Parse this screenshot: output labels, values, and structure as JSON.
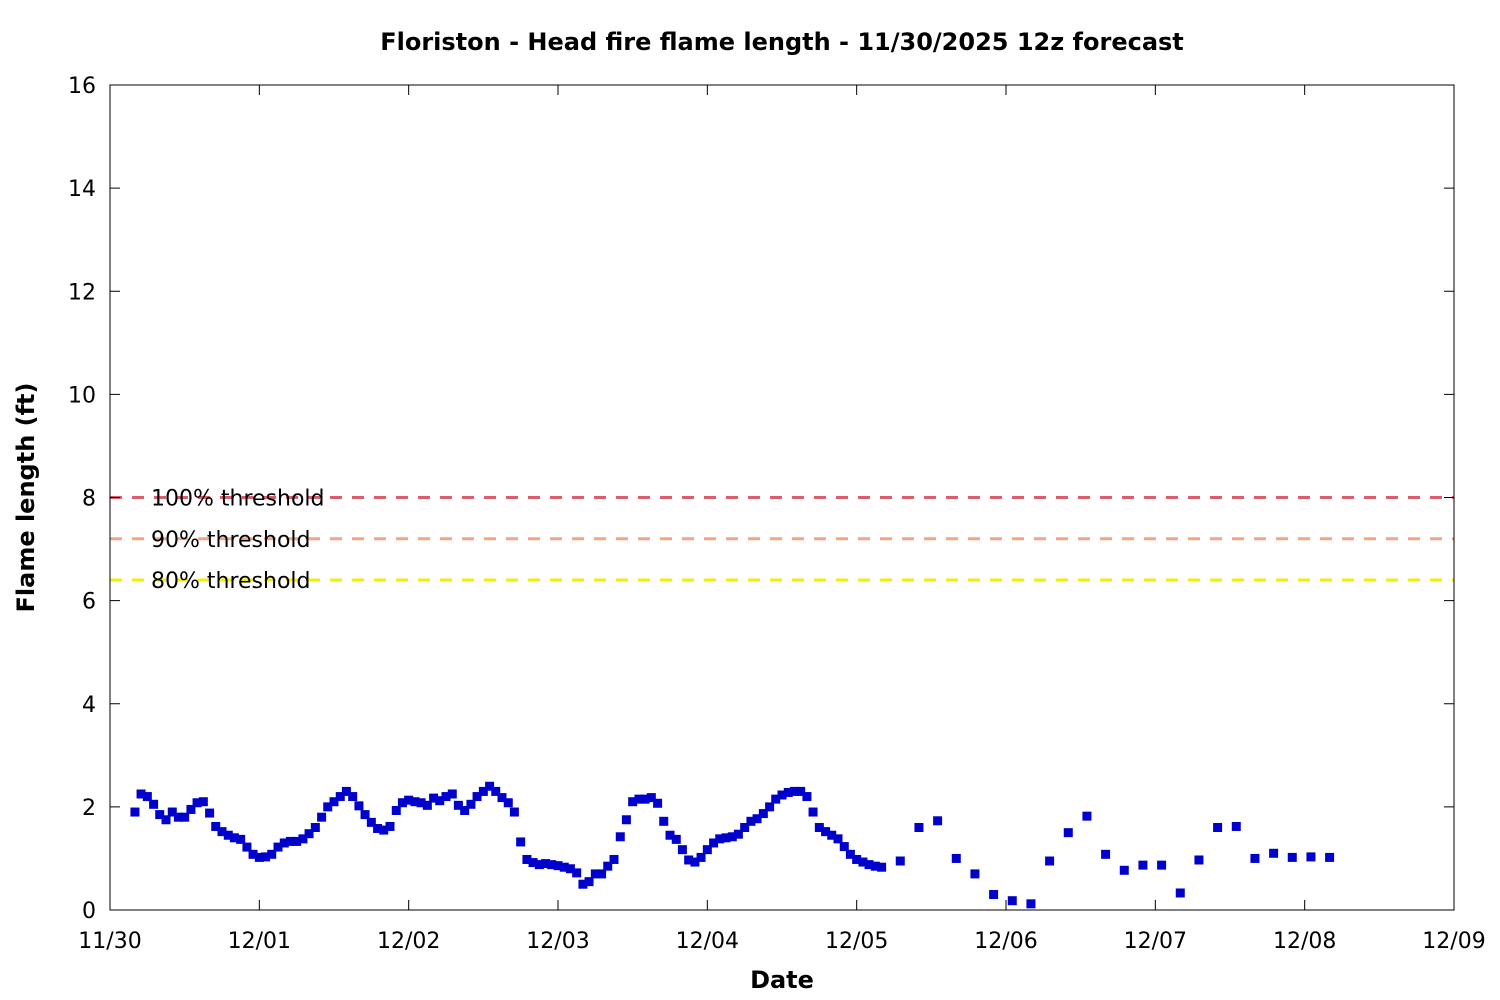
{
  "chart_data": {
    "type": "scatter",
    "title": "Floriston - Head fire flame length - 11/30/2025 12z forecast",
    "xlabel": "Date",
    "ylabel": "Flame length (ft)",
    "x_unit": "days after 11/30 00:00",
    "xlim": [
      0,
      9
    ],
    "ylim": [
      0,
      16
    ],
    "x_ticks": [
      {
        "value": 0,
        "label": "11/30"
      },
      {
        "value": 1,
        "label": "12/01"
      },
      {
        "value": 2,
        "label": "12/02"
      },
      {
        "value": 3,
        "label": "12/03"
      },
      {
        "value": 4,
        "label": "12/04"
      },
      {
        "value": 5,
        "label": "12/05"
      },
      {
        "value": 6,
        "label": "12/06"
      },
      {
        "value": 7,
        "label": "12/07"
      },
      {
        "value": 8,
        "label": "12/08"
      },
      {
        "value": 9,
        "label": "12/09"
      }
    ],
    "y_ticks": [
      0,
      2,
      4,
      6,
      8,
      10,
      12,
      14,
      16
    ],
    "grid": false,
    "thresholds": [
      {
        "label": "100% threshold",
        "value": 8.0,
        "color": "#d95f6e"
      },
      {
        "label": "90% threshold",
        "value": 7.2,
        "color": "#f4a582"
      },
      {
        "label": "80% threshold",
        "value": 6.4,
        "color": "#f5ee00"
      }
    ],
    "marker_color": "#0000cc",
    "series": [
      {
        "points": [
          [
            0.167,
            1.9
          ],
          [
            0.208,
            2.25
          ],
          [
            0.25,
            2.2
          ],
          [
            0.292,
            2.05
          ],
          [
            0.333,
            1.85
          ],
          [
            0.375,
            1.75
          ],
          [
            0.417,
            1.9
          ],
          [
            0.458,
            1.8
          ],
          [
            0.5,
            1.8
          ],
          [
            0.542,
            1.95
          ],
          [
            0.583,
            2.08
          ],
          [
            0.625,
            2.1
          ],
          [
            0.667,
            1.88
          ],
          [
            0.708,
            1.62
          ],
          [
            0.75,
            1.52
          ],
          [
            0.792,
            1.45
          ],
          [
            0.833,
            1.4
          ],
          [
            0.875,
            1.37
          ],
          [
            0.917,
            1.22
          ],
          [
            0.958,
            1.08
          ],
          [
            1.0,
            1.02
          ],
          [
            1.042,
            1.03
          ],
          [
            1.083,
            1.08
          ],
          [
            1.125,
            1.22
          ],
          [
            1.167,
            1.3
          ],
          [
            1.208,
            1.33
          ],
          [
            1.25,
            1.33
          ],
          [
            1.292,
            1.38
          ],
          [
            1.333,
            1.48
          ],
          [
            1.375,
            1.6
          ],
          [
            1.417,
            1.8
          ],
          [
            1.458,
            2.0
          ],
          [
            1.5,
            2.1
          ],
          [
            1.542,
            2.2
          ],
          [
            1.583,
            2.3
          ],
          [
            1.625,
            2.2
          ],
          [
            1.667,
            2.02
          ],
          [
            1.708,
            1.85
          ],
          [
            1.75,
            1.7
          ],
          [
            1.792,
            1.58
          ],
          [
            1.833,
            1.55
          ],
          [
            1.875,
            1.62
          ],
          [
            1.917,
            1.93
          ],
          [
            1.958,
            2.08
          ],
          [
            2.0,
            2.13
          ],
          [
            2.042,
            2.1
          ],
          [
            2.083,
            2.08
          ],
          [
            2.125,
            2.03
          ],
          [
            2.167,
            2.17
          ],
          [
            2.208,
            2.12
          ],
          [
            2.25,
            2.2
          ],
          [
            2.292,
            2.25
          ],
          [
            2.333,
            2.03
          ],
          [
            2.375,
            1.93
          ],
          [
            2.417,
            2.05
          ],
          [
            2.458,
            2.2
          ],
          [
            2.5,
            2.3
          ],
          [
            2.542,
            2.4
          ],
          [
            2.583,
            2.3
          ],
          [
            2.625,
            2.18
          ],
          [
            2.667,
            2.08
          ],
          [
            2.708,
            1.9
          ],
          [
            2.75,
            1.32
          ],
          [
            2.792,
            0.98
          ],
          [
            2.833,
            0.92
          ],
          [
            2.875,
            0.88
          ],
          [
            2.917,
            0.9
          ],
          [
            2.958,
            0.88
          ],
          [
            3.0,
            0.86
          ],
          [
            3.042,
            0.83
          ],
          [
            3.083,
            0.8
          ],
          [
            3.125,
            0.72
          ],
          [
            3.167,
            0.5
          ],
          [
            3.208,
            0.55
          ],
          [
            3.25,
            0.7
          ],
          [
            3.292,
            0.7
          ],
          [
            3.333,
            0.85
          ],
          [
            3.375,
            0.98
          ],
          [
            3.417,
            1.42
          ],
          [
            3.458,
            1.75
          ],
          [
            3.5,
            2.1
          ],
          [
            3.542,
            2.15
          ],
          [
            3.583,
            2.15
          ],
          [
            3.625,
            2.18
          ],
          [
            3.667,
            2.07
          ],
          [
            3.708,
            1.72
          ],
          [
            3.75,
            1.45
          ],
          [
            3.792,
            1.37
          ],
          [
            3.833,
            1.17
          ],
          [
            3.875,
            0.97
          ],
          [
            3.917,
            0.93
          ],
          [
            3.958,
            1.02
          ],
          [
            4.0,
            1.17
          ],
          [
            4.042,
            1.3
          ],
          [
            4.083,
            1.38
          ],
          [
            4.125,
            1.4
          ],
          [
            4.167,
            1.42
          ],
          [
            4.208,
            1.47
          ],
          [
            4.25,
            1.6
          ],
          [
            4.292,
            1.72
          ],
          [
            4.333,
            1.77
          ],
          [
            4.375,
            1.87
          ],
          [
            4.417,
            2.0
          ],
          [
            4.458,
            2.15
          ],
          [
            4.5,
            2.23
          ],
          [
            4.542,
            2.28
          ],
          [
            4.583,
            2.3
          ],
          [
            4.625,
            2.3
          ],
          [
            4.667,
            2.2
          ],
          [
            4.708,
            1.9
          ],
          [
            4.75,
            1.6
          ],
          [
            4.792,
            1.52
          ],
          [
            4.833,
            1.45
          ],
          [
            4.875,
            1.38
          ],
          [
            4.917,
            1.23
          ],
          [
            4.958,
            1.08
          ],
          [
            5.0,
            0.98
          ],
          [
            5.042,
            0.93
          ],
          [
            5.083,
            0.88
          ],
          [
            5.125,
            0.85
          ],
          [
            5.167,
            0.83
          ],
          [
            5.292,
            0.95
          ],
          [
            5.417,
            1.6
          ],
          [
            5.542,
            1.73
          ],
          [
            5.667,
            1.0
          ],
          [
            5.792,
            0.7
          ],
          [
            5.917,
            0.3
          ],
          [
            6.042,
            0.18
          ],
          [
            6.167,
            0.12
          ],
          [
            6.292,
            0.95
          ],
          [
            6.417,
            1.5
          ],
          [
            6.542,
            1.82
          ],
          [
            6.667,
            1.08
          ],
          [
            6.792,
            0.77
          ],
          [
            6.917,
            0.87
          ],
          [
            7.042,
            0.87
          ],
          [
            7.167,
            0.33
          ],
          [
            7.292,
            0.97
          ],
          [
            7.417,
            1.6
          ],
          [
            7.542,
            1.62
          ],
          [
            7.667,
            1.0
          ],
          [
            7.792,
            1.1
          ],
          [
            7.917,
            1.02
          ],
          [
            8.042,
            1.03
          ],
          [
            8.167,
            1.02
          ]
        ]
      }
    ]
  }
}
